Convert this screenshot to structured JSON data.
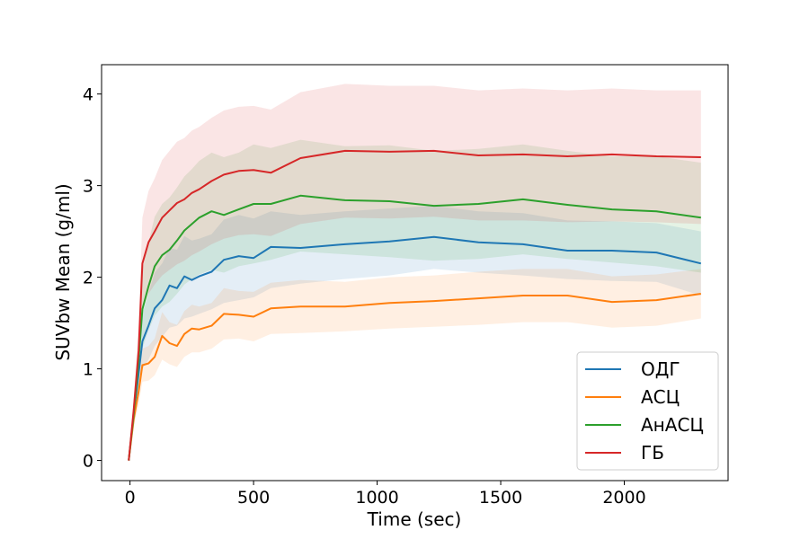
{
  "chart_data": {
    "type": "line",
    "title": "",
    "xlabel": "Time (sec)",
    "ylabel": "SUVbw Mean (g/ml)",
    "xlim": [
      -115,
      2420
    ],
    "ylim": [
      -0.22,
      4.32
    ],
    "xticks": [
      0,
      500,
      1000,
      1500,
      2000
    ],
    "yticks": [
      0,
      1,
      2,
      3,
      4
    ],
    "grid": false,
    "legend_position": "lower-right",
    "series": [
      {
        "name": "ОДГ",
        "color": "#1f77b4",
        "x": [
          -5,
          15,
          35,
          50,
          75,
          100,
          130,
          160,
          190,
          220,
          250,
          280,
          330,
          380,
          440,
          500,
          570,
          690,
          870,
          1050,
          1230,
          1410,
          1590,
          1770,
          1950,
          2130,
          2310
        ],
        "y": [
          0,
          0.5,
          0.95,
          1.3,
          1.47,
          1.66,
          1.75,
          1.91,
          1.88,
          2.01,
          1.97,
          2.01,
          2.06,
          2.19,
          2.23,
          2.21,
          2.33,
          2.32,
          2.36,
          2.39,
          2.44,
          2.38,
          2.36,
          2.29,
          2.29,
          2.27,
          2.15
        ],
        "lower": [
          0,
          0.35,
          0.72,
          1.0,
          1.1,
          1.25,
          1.35,
          1.45,
          1.47,
          1.55,
          1.57,
          1.6,
          1.65,
          1.72,
          1.75,
          1.78,
          1.88,
          1.93,
          1.98,
          2.02,
          2.09,
          2.05,
          2.02,
          1.98,
          1.96,
          1.95,
          1.8
        ],
        "upper": [
          0,
          0.65,
          1.18,
          1.6,
          1.82,
          2.05,
          2.15,
          2.32,
          2.3,
          2.45,
          2.4,
          2.42,
          2.47,
          2.63,
          2.68,
          2.64,
          2.72,
          2.68,
          2.72,
          2.75,
          2.78,
          2.72,
          2.7,
          2.62,
          2.61,
          2.59,
          2.5
        ]
      },
      {
        "name": "АСЦ",
        "color": "#ff7f0e",
        "x": [
          -5,
          15,
          35,
          50,
          75,
          100,
          130,
          160,
          190,
          220,
          250,
          280,
          330,
          380,
          440,
          500,
          570,
          690,
          870,
          1050,
          1230,
          1410,
          1590,
          1770,
          1950,
          2130,
          2310
        ],
        "y": [
          0,
          0.45,
          0.75,
          1.04,
          1.06,
          1.13,
          1.36,
          1.28,
          1.25,
          1.38,
          1.44,
          1.43,
          1.47,
          1.6,
          1.59,
          1.57,
          1.66,
          1.68,
          1.68,
          1.72,
          1.74,
          1.77,
          1.8,
          1.8,
          1.73,
          1.75,
          1.82
        ],
        "lower": [
          0,
          0.38,
          0.6,
          0.86,
          0.87,
          0.93,
          1.1,
          1.05,
          1.02,
          1.13,
          1.18,
          1.18,
          1.22,
          1.32,
          1.33,
          1.3,
          1.38,
          1.39,
          1.41,
          1.44,
          1.46,
          1.48,
          1.51,
          1.51,
          1.45,
          1.47,
          1.55
        ],
        "upper": [
          0,
          0.52,
          0.9,
          1.22,
          1.25,
          1.33,
          1.62,
          1.51,
          1.48,
          1.63,
          1.7,
          1.68,
          1.72,
          1.88,
          1.85,
          1.84,
          1.94,
          1.97,
          1.95,
          2.0,
          2.02,
          2.06,
          2.09,
          2.09,
          2.01,
          2.03,
          2.09
        ]
      },
      {
        "name": "АнАСЦ",
        "color": "#2ca02c",
        "x": [
          -5,
          15,
          35,
          50,
          75,
          100,
          130,
          160,
          190,
          220,
          250,
          280,
          330,
          380,
          440,
          500,
          570,
          690,
          870,
          1050,
          1230,
          1410,
          1590,
          1770,
          1950,
          2130,
          2310
        ],
        "y": [
          0,
          0.5,
          1.1,
          1.65,
          1.9,
          2.12,
          2.24,
          2.3,
          2.4,
          2.51,
          2.58,
          2.65,
          2.72,
          2.68,
          2.74,
          2.8,
          2.8,
          2.89,
          2.84,
          2.83,
          2.78,
          2.8,
          2.85,
          2.79,
          2.74,
          2.72,
          2.65
        ],
        "lower": [
          0,
          0.35,
          0.85,
          1.22,
          1.42,
          1.58,
          1.68,
          1.73,
          1.82,
          1.92,
          1.98,
          2.03,
          2.08,
          2.05,
          2.12,
          2.15,
          2.19,
          2.28,
          2.25,
          2.22,
          2.18,
          2.2,
          2.25,
          2.2,
          2.16,
          2.12,
          2.05
        ],
        "upper": [
          0,
          0.65,
          1.35,
          2.08,
          2.38,
          2.66,
          2.8,
          2.87,
          2.98,
          3.1,
          3.18,
          3.27,
          3.36,
          3.31,
          3.36,
          3.45,
          3.41,
          3.5,
          3.43,
          3.44,
          3.38,
          3.4,
          3.45,
          3.38,
          3.32,
          3.32,
          3.25
        ]
      },
      {
        "name": "ГБ",
        "color": "#d62728",
        "x": [
          -5,
          15,
          35,
          50,
          75,
          100,
          130,
          160,
          190,
          220,
          250,
          280,
          330,
          380,
          440,
          500,
          570,
          690,
          870,
          1050,
          1230,
          1410,
          1590,
          1770,
          1950,
          2130,
          2310
        ],
        "y": [
          0,
          0.55,
          1.2,
          2.15,
          2.38,
          2.5,
          2.65,
          2.73,
          2.81,
          2.85,
          2.92,
          2.96,
          3.05,
          3.12,
          3.16,
          3.17,
          3.14,
          3.3,
          3.38,
          3.37,
          3.38,
          3.33,
          3.34,
          3.32,
          3.34,
          3.32,
          3.31
        ],
        "lower": [
          0,
          0.45,
          0.95,
          1.65,
          1.82,
          1.92,
          2.02,
          2.08,
          2.14,
          2.18,
          2.24,
          2.28,
          2.36,
          2.42,
          2.46,
          2.47,
          2.45,
          2.58,
          2.65,
          2.64,
          2.66,
          2.62,
          2.62,
          2.6,
          2.61,
          2.6,
          2.58
        ],
        "upper": [
          0,
          0.65,
          1.45,
          2.65,
          2.94,
          3.08,
          3.28,
          3.38,
          3.48,
          3.52,
          3.6,
          3.64,
          3.74,
          3.82,
          3.86,
          3.87,
          3.83,
          4.02,
          4.11,
          4.09,
          4.09,
          4.04,
          4.06,
          4.04,
          4.06,
          4.04,
          4.04
        ]
      }
    ]
  }
}
